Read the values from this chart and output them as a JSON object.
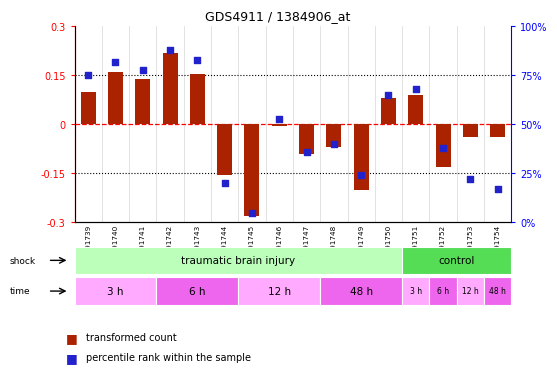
{
  "title": "GDS4911 / 1384906_at",
  "samples": [
    "GSM591739",
    "GSM591740",
    "GSM591741",
    "GSM591742",
    "GSM591743",
    "GSM591744",
    "GSM591745",
    "GSM591746",
    "GSM591747",
    "GSM591748",
    "GSM591749",
    "GSM591750",
    "GSM591751",
    "GSM591752",
    "GSM591753",
    "GSM591754"
  ],
  "bar_values": [
    0.1,
    0.16,
    0.14,
    0.22,
    0.155,
    -0.155,
    -0.28,
    -0.005,
    -0.09,
    -0.07,
    -0.2,
    0.08,
    0.09,
    -0.13,
    -0.04,
    -0.04
  ],
  "dot_values": [
    75,
    82,
    78,
    88,
    83,
    20,
    5,
    53,
    36,
    40,
    24,
    65,
    68,
    38,
    22,
    17
  ],
  "bar_color": "#aa2200",
  "dot_color": "#2222cc",
  "ylim": [
    -0.3,
    0.3
  ],
  "y2lim": [
    0,
    100
  ],
  "yticks": [
    -0.3,
    -0.15,
    0.0,
    0.15,
    0.3
  ],
  "y2ticks": [
    0,
    25,
    50,
    75,
    100
  ],
  "y2ticklabels": [
    "0%",
    "25%",
    "50%",
    "75%",
    "100%"
  ],
  "shock_tbi_label": "traumatic brain injury",
  "shock_ctrl_label": "control",
  "shock_tbi_color": "#bbffbb",
  "shock_ctrl_color": "#55dd55",
  "time_color_light": "#ffaaff",
  "time_color_dark": "#ee66ee",
  "legend_bar_label": "transformed count",
  "legend_dot_label": "percentile rank within the sample",
  "n_samples": 16,
  "tbi_count": 12,
  "ctrl_count": 4,
  "bg_color": "#e8e8e8",
  "tbi_time_groups": [
    [
      0,
      3,
      "3 h"
    ],
    [
      3,
      3,
      "6 h"
    ],
    [
      6,
      3,
      "12 h"
    ],
    [
      9,
      3,
      "48 h"
    ]
  ],
  "ctrl_time_groups": [
    [
      12,
      1,
      "3 h"
    ],
    [
      13,
      1,
      "6 h"
    ],
    [
      14,
      1,
      "12 h"
    ],
    [
      15,
      1,
      "48 h"
    ]
  ]
}
